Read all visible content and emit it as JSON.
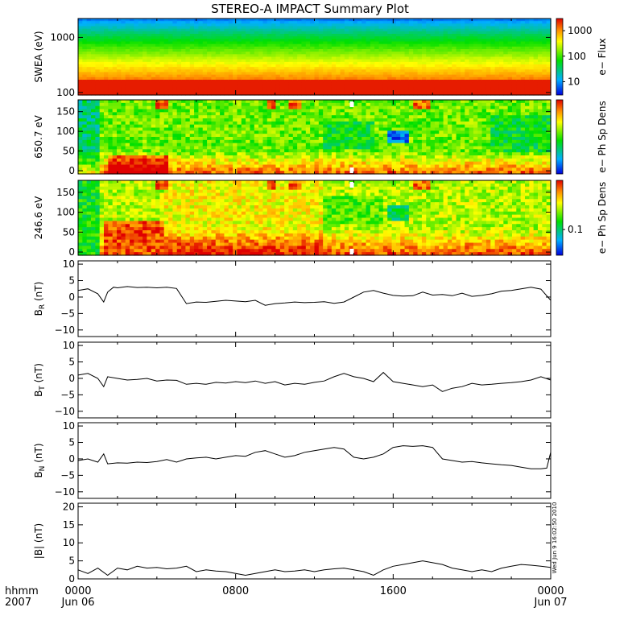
{
  "title": "STEREO-A IMPACT Summary Plot",
  "stamp": "Wed Jun 9 16:02:50 2010",
  "time_axis": {
    "label_line1": "hhmm",
    "label_line2": "2007",
    "ticks": [
      {
        "hhmm": "0000",
        "date": "Jun 06"
      },
      {
        "hhmm": "0800",
        "date": ""
      },
      {
        "hhmm": "1600",
        "date": ""
      },
      {
        "hhmm": "0000",
        "date": "Jun 07"
      }
    ]
  },
  "chart_data": [
    {
      "type": "heatmap",
      "ylabel": "SWEA (eV)",
      "y_scale": "log",
      "ylim": [
        90,
        2200
      ],
      "ytick_labels": [
        "1000",
        "100"
      ],
      "ytick_values": [
        1000,
        100
      ],
      "colorbar": {
        "label": "e− Flux",
        "scale": "log",
        "range": [
          3,
          3000
        ],
        "tick_labels": [
          "1000",
          "100",
          "10"
        ],
        "tick_values": [
          1000,
          100,
          10
        ]
      }
    },
    {
      "type": "heatmap",
      "ylabel": "650.7 eV",
      "ylim": [
        -8,
        180
      ],
      "ytick_labels": [
        "150",
        "100",
        "50",
        "0"
      ],
      "ytick_values": [
        150,
        100,
        50,
        0
      ],
      "colorbar": {
        "label": "e− Ph Sp Dens",
        "tick_labels": [],
        "tick_values": []
      }
    },
    {
      "type": "heatmap",
      "ylabel": "246.6 eV",
      "ylim": [
        -8,
        180
      ],
      "ytick_labels": [
        "150",
        "100",
        "50",
        "0"
      ],
      "ytick_values": [
        150,
        100,
        50,
        0
      ],
      "colorbar": {
        "label": "e− Ph Sp Dens",
        "scale": "log",
        "range": [
          0.03,
          1
        ],
        "tick_labels": [
          "0.1"
        ],
        "tick_values": [
          0.1
        ]
      }
    },
    {
      "type": "line",
      "ylabel_main": "B",
      "ylabel_sub": "R",
      "ylabel_unit": " (nT)",
      "ylim": [
        -12,
        11
      ],
      "ytick_labels": [
        "10",
        "5",
        "0",
        "−5",
        "−10"
      ],
      "ytick_values": [
        10,
        5,
        0,
        -5,
        -10
      ],
      "x": [
        0,
        0.5,
        1,
        1.3,
        1.5,
        1.8,
        2,
        2.5,
        3,
        3.5,
        4,
        4.5,
        5,
        5.5,
        6,
        6.5,
        7,
        7.5,
        8,
        8.5,
        9,
        9.5,
        10,
        10.5,
        11,
        11.5,
        12,
        12.5,
        13,
        13.5,
        14,
        14.5,
        15,
        15.5,
        16,
        16.5,
        17,
        17.5,
        18,
        18.5,
        19,
        19.5,
        20,
        20.5,
        21,
        21.5,
        22,
        22.5,
        23,
        23.5,
        24
      ],
      "values": [
        2.0,
        2.5,
        1.0,
        -1.5,
        1.5,
        3.0,
        2.8,
        3.2,
        2.9,
        3.0,
        2.8,
        3.0,
        2.6,
        -2.0,
        -1.5,
        -1.6,
        -1.3,
        -1.0,
        -1.2,
        -1.4,
        -1.0,
        -2.5,
        -2.0,
        -1.8,
        -1.5,
        -1.7,
        -1.6,
        -1.4,
        -1.9,
        -1.5,
        0.0,
        1.5,
        2.0,
        1.2,
        0.5,
        0.3,
        0.4,
        1.5,
        0.6,
        0.8,
        0.4,
        1.2,
        0.2,
        0.5,
        1.0,
        1.8,
        2.0,
        2.5,
        3.0,
        2.4,
        -1.0
      ]
    },
    {
      "type": "line",
      "ylabel_main": "B",
      "ylabel_sub": "T",
      "ylabel_unit": " (nT)",
      "ylim": [
        -12,
        11
      ],
      "ytick_labels": [
        "10",
        "5",
        "0",
        "−5",
        "−10"
      ],
      "ytick_values": [
        10,
        5,
        0,
        -5,
        -10
      ],
      "x": [
        0,
        0.5,
        1,
        1.3,
        1.5,
        2,
        2.5,
        3,
        3.5,
        4,
        4.5,
        5,
        5.5,
        6,
        6.5,
        7,
        7.5,
        8,
        8.5,
        9,
        9.5,
        10,
        10.5,
        11,
        11.5,
        12,
        12.5,
        13,
        13.5,
        14,
        14.5,
        15,
        15.5,
        16,
        16.5,
        17,
        17.5,
        18,
        18.5,
        19,
        19.5,
        20,
        20.5,
        21,
        21.5,
        22,
        22.5,
        23,
        23.5,
        24
      ],
      "values": [
        1.0,
        1.5,
        0.0,
        -2.5,
        0.5,
        0.0,
        -0.5,
        -0.3,
        0.0,
        -0.8,
        -0.5,
        -0.6,
        -1.8,
        -1.5,
        -1.8,
        -1.2,
        -1.4,
        -1.0,
        -1.3,
        -0.8,
        -1.5,
        -1.0,
        -2.0,
        -1.5,
        -1.8,
        -1.2,
        -0.8,
        0.5,
        1.5,
        0.5,
        0.0,
        -1.0,
        1.8,
        -1.0,
        -1.5,
        -2.0,
        -2.5,
        -2.0,
        -4.0,
        -3.0,
        -2.5,
        -1.5,
        -2.0,
        -1.8,
        -1.5,
        -1.3,
        -1.0,
        -0.5,
        0.5,
        -0.5
      ]
    },
    {
      "type": "line",
      "ylabel_main": "B",
      "ylabel_sub": "N",
      "ylabel_unit": " (nT)",
      "ylim": [
        -12,
        11
      ],
      "ytick_labels": [
        "10",
        "5",
        "0",
        "−5",
        "−10"
      ],
      "ytick_values": [
        10,
        5,
        0,
        -5,
        -10
      ],
      "x": [
        0,
        0.5,
        1,
        1.3,
        1.5,
        2,
        2.5,
        3,
        3.5,
        4,
        4.5,
        5,
        5.5,
        6,
        6.5,
        7,
        7.5,
        8,
        8.5,
        9,
        9.5,
        10,
        10.5,
        11,
        11.5,
        12,
        12.5,
        13,
        13.5,
        14,
        14.5,
        15,
        15.5,
        16,
        16.5,
        17,
        17.5,
        18,
        18.5,
        19,
        19.5,
        20,
        20.5,
        21,
        21.5,
        22,
        22.5,
        23,
        23.5,
        23.8,
        24
      ],
      "values": [
        -0.5,
        0.0,
        -1.0,
        1.5,
        -1.5,
        -1.2,
        -1.3,
        -1.0,
        -1.1,
        -0.8,
        -0.2,
        -1.0,
        0.0,
        0.3,
        0.5,
        0.0,
        0.5,
        1.0,
        0.8,
        2.0,
        2.5,
        1.5,
        0.5,
        1.0,
        2.0,
        2.5,
        3.0,
        3.5,
        3.0,
        0.5,
        0.0,
        0.5,
        1.5,
        3.5,
        4.0,
        3.8,
        4.0,
        3.5,
        0.0,
        -0.5,
        -1.0,
        -0.8,
        -1.2,
        -1.5,
        -1.8,
        -2.0,
        -2.5,
        -3.0,
        -3.0,
        -2.8,
        2.0
      ]
    },
    {
      "type": "line",
      "ylabel": "|B| (nT)",
      "ylim": [
        0,
        21
      ],
      "ytick_labels": [
        "20",
        "15",
        "10",
        "5",
        "0"
      ],
      "ytick_values": [
        20,
        15,
        10,
        5,
        0
      ],
      "x": [
        0,
        0.5,
        1,
        1.5,
        2,
        2.5,
        3,
        3.5,
        4,
        4.5,
        5,
        5.5,
        6,
        6.5,
        7,
        7.5,
        8,
        8.5,
        9,
        9.5,
        10,
        10.5,
        11,
        11.5,
        12,
        12.5,
        13,
        13.5,
        14,
        14.5,
        15,
        15.5,
        16,
        16.5,
        17,
        17.5,
        18,
        18.5,
        19,
        19.5,
        20,
        20.5,
        21,
        21.5,
        22,
        22.5,
        23,
        23.5,
        24
      ],
      "values": [
        2.5,
        1.5,
        3.0,
        1.0,
        3.0,
        2.5,
        3.5,
        3.0,
        3.2,
        2.8,
        3.0,
        3.5,
        2.0,
        2.5,
        2.2,
        2.0,
        1.5,
        1.0,
        1.5,
        2.0,
        2.5,
        2.0,
        2.2,
        2.5,
        2.0,
        2.5,
        2.8,
        3.0,
        2.5,
        2.0,
        1.0,
        2.5,
        3.5,
        4.0,
        4.5,
        5.0,
        4.5,
        4.0,
        3.0,
        2.5,
        2.0,
        2.5,
        2.0,
        3.0,
        3.5,
        4.0,
        3.8,
        3.5,
        3.2
      ]
    }
  ]
}
